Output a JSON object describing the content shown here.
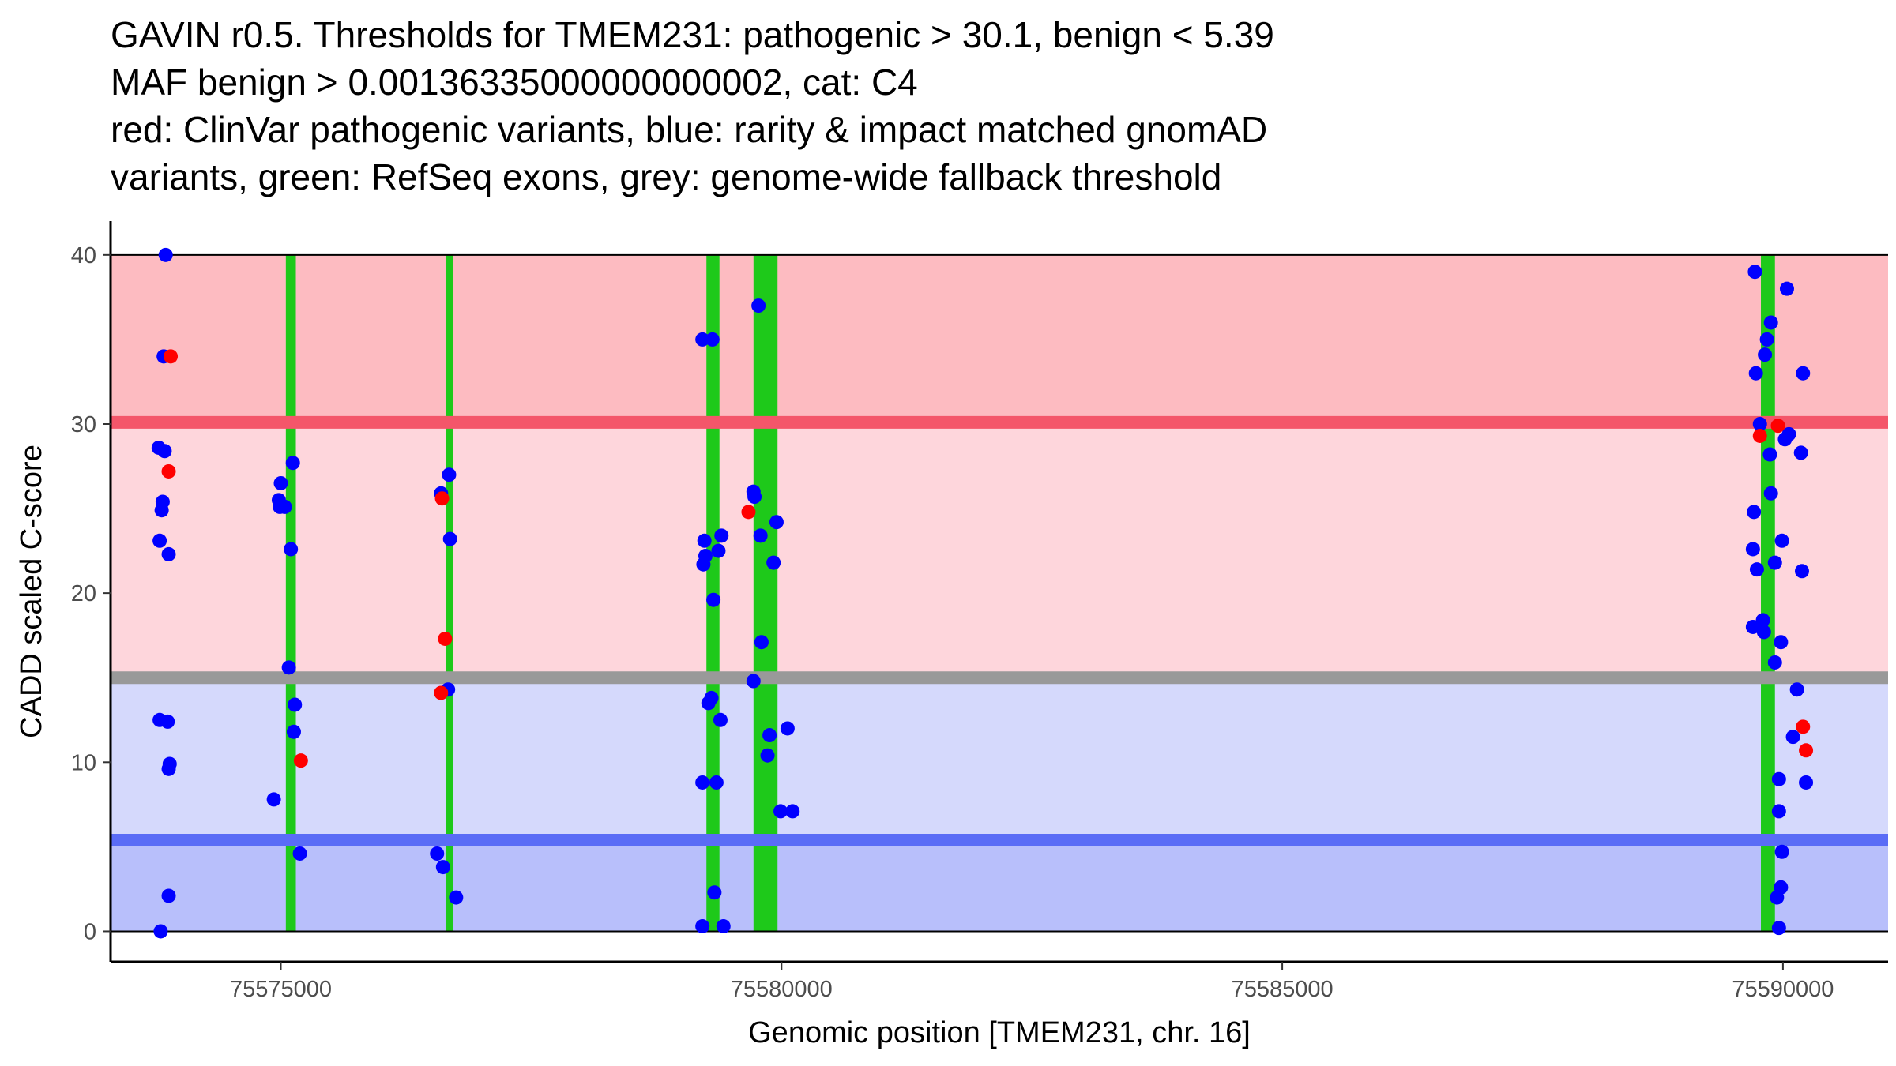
{
  "chart_data": {
    "type": "scatter",
    "title_lines": [
      "GAVIN r0.5. Thresholds for TMEM231: pathogenic > 30.1, benign < 5.39",
      "MAF benign > 0.00136335000000000002, cat: C4",
      "red: ClinVar pathogenic variants, blue: rarity & impact matched gnomAD",
      "variants, green: RefSeq exons, grey: genome-wide fallback threshold"
    ],
    "xlabel": "Genomic position [TMEM231, chr. 16]",
    "ylabel": "CADD scaled C-score",
    "xlim": [
      75573300,
      75591050
    ],
    "ylim": [
      -1.8,
      42
    ],
    "x_ticks": [
      75575000,
      75580000,
      75585000,
      75590000
    ],
    "x_tick_labels": [
      "75575000",
      "75580000",
      "75585000",
      "75590000"
    ],
    "y_ticks": [
      0,
      10,
      20,
      30,
      40
    ],
    "y_tick_labels": [
      "0",
      "10",
      "20",
      "30",
      "40"
    ],
    "thresholds": {
      "pathogenic": 30.1,
      "benign": 5.39,
      "genome_wide_fallback": 15.0,
      "max": 40
    },
    "colors": {
      "pathogenic_band": "#fdbbc1",
      "middle_upper_band": "#fed6dc",
      "middle_lower_band": "#d5d9fc",
      "benign_band": "#b8bffb",
      "pathogenic_line": "#f4566a",
      "benign_line": "#5a6cf6",
      "fallback_line": "#999999",
      "exon": "#1ec91a",
      "clinvar": "#ff0000",
      "gnomad": "#0000ff"
    },
    "exons": [
      {
        "start": 75575050,
        "end": 75575150
      },
      {
        "start": 75576650,
        "end": 75576720
      },
      {
        "start": 75579250,
        "end": 75579380
      },
      {
        "start": 75579720,
        "end": 75579960
      },
      {
        "start": 75589780,
        "end": 75589920
      }
    ],
    "series": [
      {
        "name": "gnomAD",
        "color": "#0000ff",
        "points": [
          [
            75573800,
            0
          ],
          [
            75573850,
            40
          ],
          [
            75573830,
            34
          ],
          [
            75573780,
            28.6
          ],
          [
            75573840,
            28.4
          ],
          [
            75573820,
            25.4
          ],
          [
            75573810,
            24.9
          ],
          [
            75573790,
            23.1
          ],
          [
            75573880,
            22.3
          ],
          [
            75573790,
            12.5
          ],
          [
            75573870,
            12.4
          ],
          [
            75573890,
            9.9
          ],
          [
            75573880,
            9.6
          ],
          [
            75573880,
            2.1
          ],
          [
            75574980,
            25.5
          ],
          [
            75574990,
            25.1
          ],
          [
            75575040,
            25.1
          ],
          [
            75575000,
            26.5
          ],
          [
            75575120,
            27.7
          ],
          [
            75575100,
            22.6
          ],
          [
            75575080,
            15.6
          ],
          [
            75575140,
            13.4
          ],
          [
            75575130,
            11.8
          ],
          [
            75574930,
            7.8
          ],
          [
            75575190,
            4.6
          ],
          [
            75576600,
            25.9
          ],
          [
            75576680,
            27.0
          ],
          [
            75576690,
            23.2
          ],
          [
            75576670,
            14.3
          ],
          [
            75576560,
            4.6
          ],
          [
            75576620,
            3.8
          ],
          [
            75576750,
            2.0
          ],
          [
            75579210,
            35
          ],
          [
            75579310,
            35
          ],
          [
            75579230,
            23.1
          ],
          [
            75579400,
            23.4
          ],
          [
            75579240,
            22.2
          ],
          [
            75579370,
            22.5
          ],
          [
            75579220,
            21.7
          ],
          [
            75579320,
            19.6
          ],
          [
            75579300,
            13.8
          ],
          [
            75579270,
            13.5
          ],
          [
            75579390,
            12.5
          ],
          [
            75579210,
            8.8
          ],
          [
            75579350,
            8.8
          ],
          [
            75579330,
            2.3
          ],
          [
            75579210,
            0.3
          ],
          [
            75579420,
            0.3
          ],
          [
            75579770,
            37
          ],
          [
            75579720,
            26
          ],
          [
            75579730,
            25.7
          ],
          [
            75579950,
            24.2
          ],
          [
            75579790,
            23.4
          ],
          [
            75579920,
            21.8
          ],
          [
            75579800,
            17.1
          ],
          [
            75579720,
            14.8
          ],
          [
            75579880,
            11.6
          ],
          [
            75580060,
            12.0
          ],
          [
            75579860,
            10.4
          ],
          [
            75579990,
            7.1
          ],
          [
            75580110,
            7.1
          ],
          [
            75589720,
            39
          ],
          [
            75589730,
            33
          ],
          [
            75589880,
            36
          ],
          [
            75590040,
            38
          ],
          [
            75589840,
            35
          ],
          [
            75589820,
            34.1
          ],
          [
            75590200,
            33
          ],
          [
            75589770,
            30
          ],
          [
            75590060,
            29.4
          ],
          [
            75590020,
            29.1
          ],
          [
            75589870,
            28.2
          ],
          [
            75590180,
            28.3
          ],
          [
            75589880,
            25.9
          ],
          [
            75589710,
            24.8
          ],
          [
            75589700,
            22.6
          ],
          [
            75589990,
            23.1
          ],
          [
            75589740,
            21.4
          ],
          [
            75589920,
            21.8
          ],
          [
            75590190,
            21.3
          ],
          [
            75589700,
            18.0
          ],
          [
            75589780,
            18.1
          ],
          [
            75589800,
            18.4
          ],
          [
            75589810,
            17.7
          ],
          [
            75589980,
            17.1
          ],
          [
            75589920,
            15.9
          ],
          [
            75590140,
            14.3
          ],
          [
            75590100,
            11.5
          ],
          [
            75589960,
            9.0
          ],
          [
            75590230,
            8.8
          ],
          [
            75589960,
            7.1
          ],
          [
            75589990,
            4.7
          ],
          [
            75589980,
            2.6
          ],
          [
            75589940,
            2.0
          ],
          [
            75589960,
            0.2
          ]
        ]
      },
      {
        "name": "ClinVar pathogenic",
        "color": "#ff0000",
        "points": [
          [
            75573900,
            34
          ],
          [
            75573880,
            27.2
          ],
          [
            75575200,
            10.1
          ],
          [
            75576610,
            25.6
          ],
          [
            75576640,
            17.3
          ],
          [
            75576600,
            14.1
          ],
          [
            75579670,
            24.8
          ],
          [
            75589770,
            29.3
          ],
          [
            75589950,
            29.9
          ],
          [
            75590200,
            12.1
          ],
          [
            75590230,
            10.7
          ]
        ]
      }
    ]
  }
}
